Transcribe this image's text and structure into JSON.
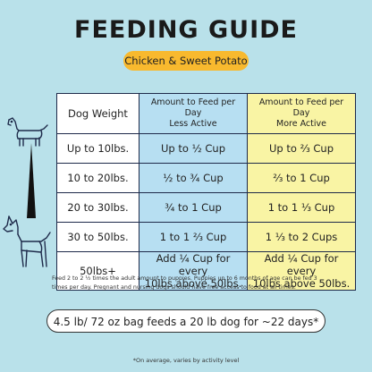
{
  "title": "FEEDING GUIDE",
  "subtitle": "Chicken & Sweet Potato",
  "icons": {
    "small_dog": "small-dog-icon",
    "large_dog": "large-dog-icon",
    "size_scale": "size-scale-icon"
  },
  "colors": {
    "background": "#b9e1ea",
    "pill": "#f8b92e",
    "less_active": "#b7dff2",
    "more_active": "#f9f4a4",
    "border": "#1e2a4a"
  },
  "table": {
    "headers": {
      "weight": "Dog Weight",
      "less": [
        "Amount to Feed per Day",
        "Less Active"
      ],
      "more": [
        "Amount to Feed per Day",
        "More Active"
      ]
    },
    "rows": [
      {
        "weight": "Up to 10lbs.",
        "less": "Up to ½ Cup",
        "more": "Up to ⅔ Cup"
      },
      {
        "weight": "10 to 20lbs.",
        "less": "½ to ¾ Cup",
        "more": "⅔ to 1 Cup"
      },
      {
        "weight": "20 to 30lbs.",
        "less": "¾ to 1 Cup",
        "more": "1 to 1 ⅓ Cup"
      },
      {
        "weight": "30 to 50lbs.",
        "less": "1 to 1 ⅔ Cup",
        "more": "1 ⅓ to 2 Cups"
      },
      {
        "weight": "50lbs+",
        "less": [
          "Add ¼ Cup for every",
          "10lbs above 50lbs."
        ],
        "more": [
          "Add ¼ Cup for every",
          "10lbs above 50lbs."
        ]
      }
    ]
  },
  "note": [
    "Feed 2 to 2 ½ times the adult amount to puppies. Puppies up to 6 months of age can be fed 3",
    "times per day. Pregnant and nursing dogs should have free access to food at all times."
  ],
  "bag_info": "4.5 lb/ 72 oz bag feeds a 20 lb dog for ~22 days*",
  "footnote": "*On average, varies by activity level"
}
